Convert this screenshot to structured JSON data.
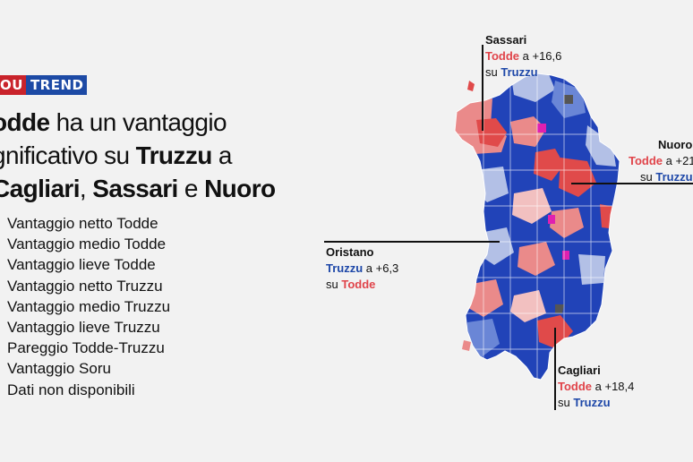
{
  "brand": {
    "part1": "OU",
    "part2": "TREND",
    "color_red": "#c9232b",
    "color_blue": "#1d4aa5"
  },
  "headline": {
    "line1_bold": "odde",
    "line1_rest": " ha un vantaggio",
    "line2_rest": "gnificativo su ",
    "line2_bold": "Truzzu",
    "line2_tail": " a",
    "line3_bold1": "Cagliari",
    "line3_sep1": ", ",
    "line3_bold2": "Sassari",
    "line3_sep2": " e ",
    "line3_bold3": "Nuoro"
  },
  "legend": [
    "Vantaggio netto Todde",
    "Vantaggio medio Todde",
    "Vantaggio lieve Todde",
    "Vantaggio netto Truzzu",
    "Vantaggio medio Truzzu",
    "Vantaggio lieve Truzzu",
    "Pareggio Todde-Truzzu",
    "Vantaggio Soru",
    "Dati non disponibili"
  ],
  "colors": {
    "todde_netto": "#e04a4a",
    "todde_medio": "#ea8a8a",
    "todde_lieve": "#f2c0c0",
    "truzzu_netto": "#2143b8",
    "truzzu_medio": "#6a86d6",
    "truzzu_lieve": "#b3c0e6",
    "pareggio": "#555555",
    "soru": "#e020b0"
  },
  "callouts": {
    "sassari": {
      "name": "Sassari",
      "winner": "Todde",
      "margin": " a +16,6",
      "loser_prefix": "su ",
      "loser": "Truzzu"
    },
    "nuoro": {
      "name": "Nuoro",
      "winner": "Todde",
      "margin": " a +21",
      "loser_prefix": "su ",
      "loser": "Truzzu"
    },
    "oristano": {
      "name": "Oristano",
      "winner": "Truzzu",
      "margin": " a +6,3",
      "loser_prefix": "su ",
      "loser": "Todde"
    },
    "cagliari": {
      "name": "Cagliari",
      "winner": "Todde",
      "margin": " a +18,4",
      "loser_prefix": "su ",
      "loser": "Truzzu"
    }
  }
}
